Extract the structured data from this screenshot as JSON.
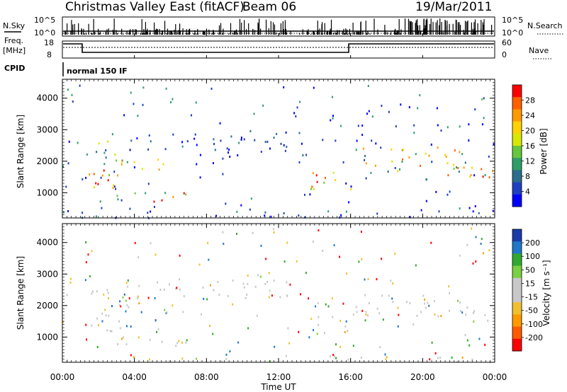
{
  "header": {
    "title": "Christmas Valley East (fitACF)",
    "beam": "Beam 06",
    "date": "19/Mar/2011"
  },
  "top_strip": {
    "nsky_label": "N.Sky",
    "nsky_ticks": [
      "10^5",
      "10^0"
    ],
    "nsearch_label": "N.Search",
    "nsearch_ticks": [
      "10^5",
      "10^0"
    ],
    "freq_label": "Freq.",
    "freq_unit": "[MHz]",
    "freq_ticks": [
      "18",
      "8"
    ],
    "nave_label": "Nave",
    "nave_ticks": [
      "60",
      "0"
    ],
    "cpid_label": "CPID",
    "cpid_value": "normal 150 IF"
  },
  "chart_data": [
    {
      "type": "heatmap",
      "name": "power",
      "ylabel": "Slant Range [km]",
      "yticks": [
        "4000",
        "3000",
        "2000",
        "1000"
      ],
      "ylim": [
        200,
        4600
      ],
      "colorbar_label": "Power [dB]",
      "colorbar_ticks": [
        "28",
        "24",
        "20",
        "16",
        "12",
        "8",
        "4"
      ],
      "colorbar_colors": [
        "#ff0000",
        "#ff6000",
        "#ff9a00",
        "#ffd200",
        "#d8e800",
        "#66c73c",
        "#2e9e68",
        "#2a6d8c",
        "#1f3fc0",
        "#0000ff"
      ]
    },
    {
      "type": "heatmap",
      "name": "velocity",
      "ylabel": "Slant Range [km]",
      "yticks": [
        "4000",
        "3000",
        "2000",
        "1000"
      ],
      "ylim": [
        200,
        4600
      ],
      "colorbar_label": "Velocity [m s⁻¹]",
      "colorbar_ticks": [
        "200",
        "100",
        "50",
        "15",
        "-15",
        "-50",
        "-100",
        "-200"
      ],
      "colorbar_colors": [
        "#1a3aa8",
        "#1f78c8",
        "#2faa2f",
        "#7ad040",
        "#c8c8c8",
        "#c8c8c8",
        "#f0c030",
        "#ff9a00",
        "#ff5a00",
        "#ff0000"
      ]
    }
  ],
  "xaxis": {
    "label": "Time UT",
    "ticks": [
      "00:00",
      "04:00",
      "08:00",
      "12:00",
      "16:00",
      "20:00",
      "00:00"
    ]
  }
}
